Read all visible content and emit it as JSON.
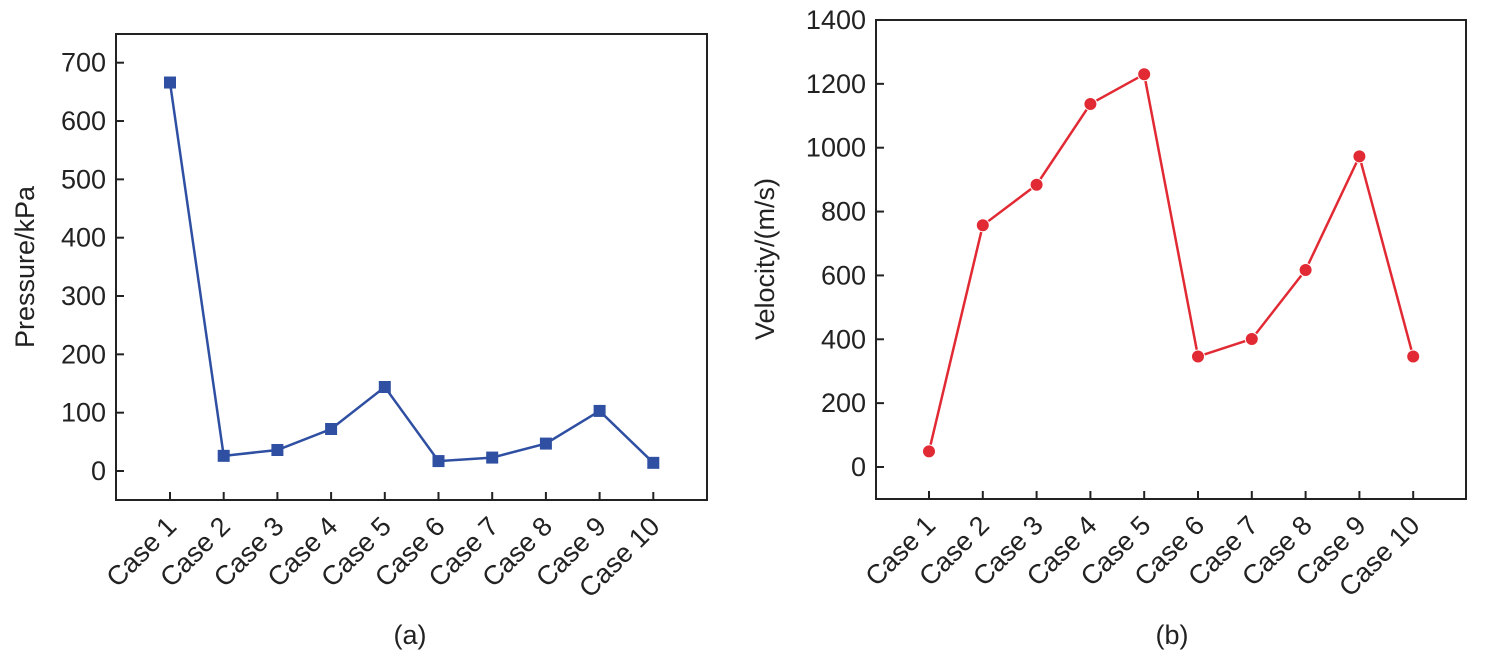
{
  "chart_data": [
    {
      "type": "line",
      "panel_label": "(a)",
      "title": "",
      "xlabel": "",
      "ylabel": "Pressure/kPa",
      "categories": [
        "Case 1",
        "Case 2",
        "Case 3",
        "Case 4",
        "Case 5",
        "Case 6",
        "Case 7",
        "Case 8",
        "Case 9",
        "Case 10"
      ],
      "series": [
        {
          "name": "Pressure",
          "values": [
            666,
            26,
            36,
            72,
            144,
            17,
            23,
            47,
            103,
            14
          ]
        }
      ],
      "ylim": [
        -50,
        750
      ],
      "yticks": [
        0,
        100,
        200,
        300,
        400,
        500,
        600,
        700
      ],
      "marker": "square",
      "color": "#2f4fa2",
      "grid": false
    },
    {
      "type": "line",
      "panel_label": "(b)",
      "title": "",
      "xlabel": "",
      "ylabel": "Velocity/(m/s)",
      "categories": [
        "Case 1",
        "Case 2",
        "Case 3",
        "Case 4",
        "Case 5",
        "Case 6",
        "Case 7",
        "Case 8",
        "Case 9",
        "Case 10"
      ],
      "series": [
        {
          "name": "Velocity",
          "values": [
            49,
            757,
            884,
            1137,
            1230,
            346,
            401,
            617,
            973,
            346
          ]
        }
      ],
      "ylim": [
        -100,
        1400
      ],
      "yticks": [
        0,
        200,
        400,
        600,
        800,
        1000,
        1200,
        1400
      ],
      "marker": "circle",
      "color": "#e12a33",
      "grid": false
    }
  ]
}
